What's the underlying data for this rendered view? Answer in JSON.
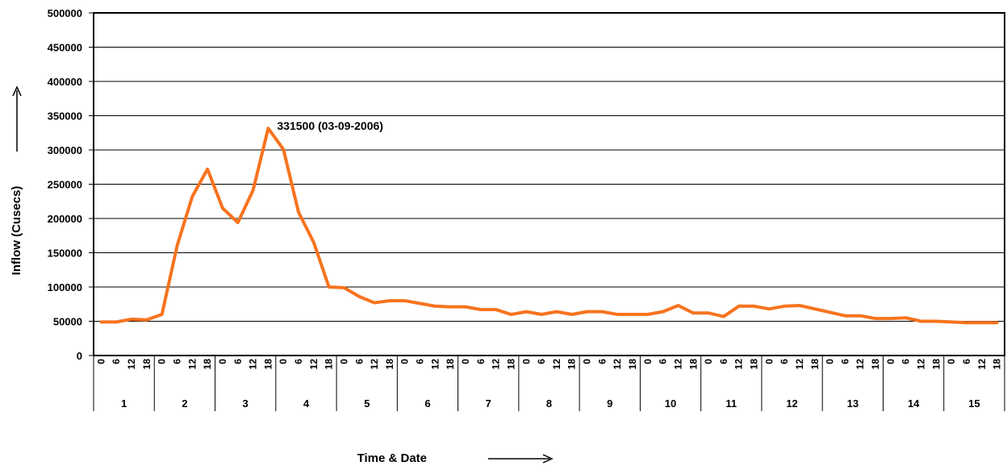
{
  "chart_data": {
    "type": "line",
    "title": "",
    "xlabel": "Time & Date",
    "ylabel": "Inflow (Cusecs)",
    "ylim": [
      0,
      500000
    ],
    "y_ticks": [
      "0",
      "50000",
      "100000",
      "150000",
      "200000",
      "250000",
      "300000",
      "350000",
      "400000",
      "450000",
      "500000"
    ],
    "hour_ticks": [
      "0",
      "6",
      "12",
      "18"
    ],
    "days": [
      "1",
      "2",
      "3",
      "4",
      "5",
      "6",
      "7",
      "8",
      "9",
      "10",
      "11",
      "12",
      "13",
      "14",
      "15"
    ],
    "grid": true,
    "legend": "none",
    "line_color": "#F7731E",
    "series": [
      {
        "values": [
          49000,
          49000,
          53000,
          52000,
          60000,
          160000,
          232000,
          272000,
          215000,
          194000,
          241000,
          331500,
          301000,
          209000,
          165000,
          100000,
          99000,
          86000,
          77000,
          80000,
          80000,
          76000,
          72000,
          71000,
          71000,
          67000,
          67000,
          60000,
          64000,
          60000,
          64000,
          60000,
          64000,
          64000,
          60000,
          60000,
          60000,
          64000,
          73000,
          62000,
          62000,
          57000,
          72000,
          72000,
          68000,
          72000,
          73000,
          68000,
          63000,
          58000,
          58000,
          54000,
          54000,
          55000,
          50000,
          50000,
          49000,
          48000,
          48000,
          48000
        ]
      }
    ],
    "annotation": {
      "text": "331500 (03-09-2006)",
      "index": 11
    }
  }
}
